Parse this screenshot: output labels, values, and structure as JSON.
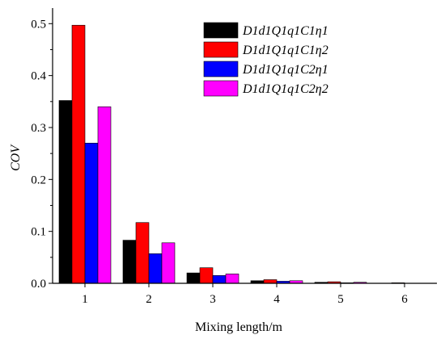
{
  "chart_data": {
    "type": "bar",
    "title": "",
    "xlabel": "Mixing length/m",
    "ylabel": "COV",
    "categories": [
      "1",
      "2",
      "3",
      "4",
      "5",
      "6"
    ],
    "ylim": [
      0,
      0.53
    ],
    "yticks": [
      "0.0",
      "0.1",
      "0.2",
      "0.3",
      "0.4",
      "0.5"
    ],
    "ytick_values": [
      0,
      0.1,
      0.2,
      0.3,
      0.4,
      0.5
    ],
    "legend_position": "top-right",
    "grid": false,
    "series": [
      {
        "name": "D1d1Q1q1C1η1",
        "color": "#000000",
        "values": [
          0.352,
          0.083,
          0.02,
          0.005,
          0.002,
          0.0
        ]
      },
      {
        "name": "D1d1Q1q1C1η2",
        "color": "#ff0000",
        "values": [
          0.497,
          0.117,
          0.03,
          0.007,
          0.003,
          0.001
        ]
      },
      {
        "name": "D1d1Q1q1C2η1",
        "color": "#0000ff",
        "values": [
          0.27,
          0.057,
          0.015,
          0.004,
          0.001,
          0.0
        ]
      },
      {
        "name": "D1d1Q1q1C2η2",
        "color": "#ff00ff",
        "values": [
          0.34,
          0.078,
          0.018,
          0.005,
          0.002,
          0.0
        ]
      }
    ]
  }
}
